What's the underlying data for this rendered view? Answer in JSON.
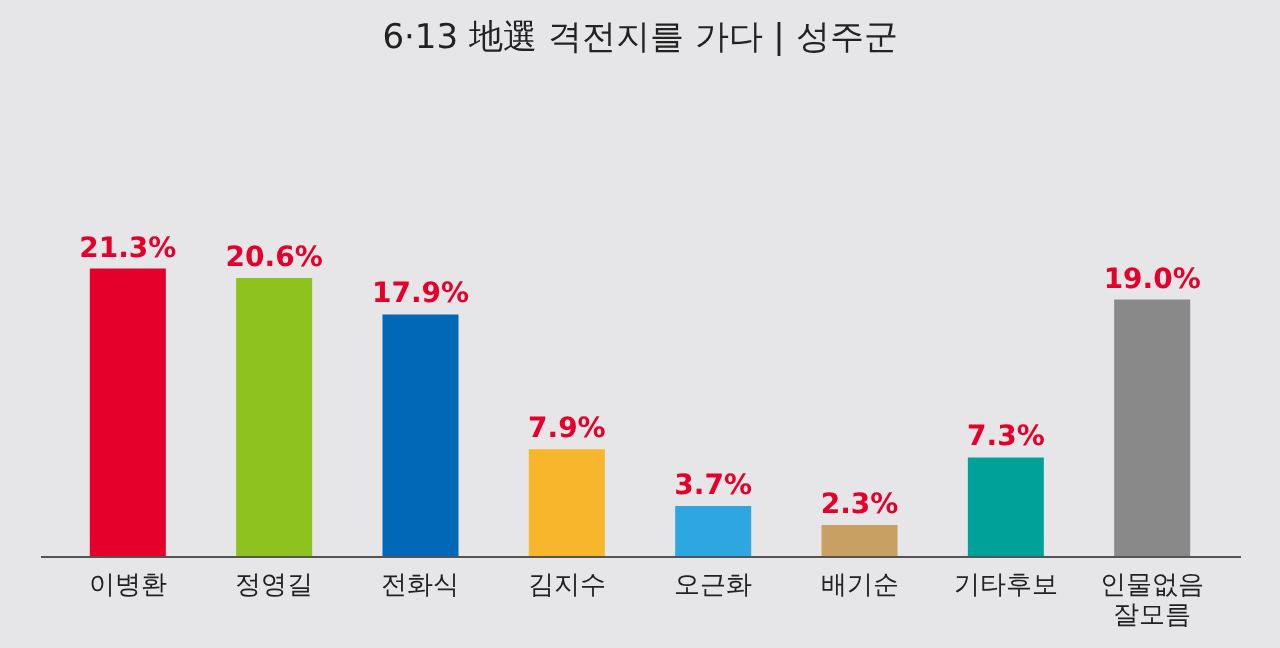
{
  "chart_data": {
    "type": "bar",
    "title": "6·13 地選 격전지를 가다  |  성주군",
    "categories": [
      "이병환",
      "정영길",
      "전화식",
      "김지수",
      "오근화",
      "배기순",
      "기타후보",
      "인물없음 잘모름"
    ],
    "values": [
      21.3,
      20.6,
      17.9,
      7.9,
      3.7,
      2.3,
      7.3,
      19.0
    ],
    "value_labels": [
      "21.3%",
      "20.6%",
      "17.9%",
      "7.9%",
      "3.7%",
      "2.3%",
      "7.3%",
      "19.0%"
    ],
    "colors": [
      "#e4002b",
      "#8dc21f",
      "#0068b7",
      "#f8b62d",
      "#2ea7e0",
      "#c9a063",
      "#00a199",
      "#898989"
    ],
    "grid": false
  }
}
